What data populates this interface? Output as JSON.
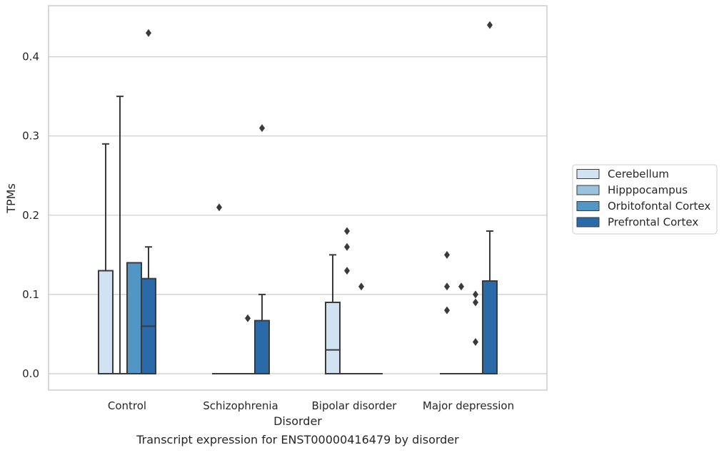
{
  "chart_data": {
    "type": "box",
    "title": "",
    "caption": "Transcript expression for ENST00000416479 by disorder",
    "xlabel": "Disorder",
    "ylabel": "TPMs",
    "ylim": [
      -0.021,
      0.465
    ],
    "yticks": [
      "0.0",
      "0.1",
      "0.2",
      "0.3",
      "0.4"
    ],
    "grid": "horizontal",
    "legend_placement": "right-outside",
    "categories": [
      "Control",
      "Schizophrenia",
      "Bipolar disorder",
      "Major depression"
    ],
    "series": [
      {
        "name": "Cerebellum",
        "color": "#d1e2f2",
        "boxes": [
          {
            "q1": 0,
            "median": 0,
            "q3": 0.13,
            "whisker_low": 0,
            "whisker_high": 0.29,
            "outliers": []
          },
          {
            "q1": 0,
            "median": 0,
            "q3": 0,
            "whisker_low": 0,
            "whisker_high": 0,
            "outliers": [
              0.21
            ]
          },
          {
            "q1": 0,
            "median": 0.03,
            "q3": 0.09,
            "whisker_low": 0,
            "whisker_high": 0.15,
            "outliers": []
          },
          {
            "q1": 0,
            "median": 0,
            "q3": 0,
            "whisker_low": 0,
            "whisker_high": 0,
            "outliers": [
              0.15,
              0.11,
              0.08
            ]
          }
        ]
      },
      {
        "name": "Hipppocampus",
        "color": "#9ac2de",
        "boxes": [
          {
            "q1": 0,
            "median": 0,
            "q3": 0,
            "whisker_low": 0,
            "whisker_high": 0.35,
            "outliers": []
          },
          {
            "q1": 0,
            "median": 0,
            "q3": 0,
            "whisker_low": 0,
            "whisker_high": 0,
            "outliers": []
          },
          {
            "q1": 0,
            "median": 0,
            "q3": 0,
            "whisker_low": 0,
            "whisker_high": 0,
            "outliers": [
              0.18,
              0.16,
              0.13
            ]
          },
          {
            "q1": 0,
            "median": 0,
            "q3": 0,
            "whisker_low": 0,
            "whisker_high": 0,
            "outliers": [
              0.11
            ]
          }
        ]
      },
      {
        "name": "Orbitofontal Cortex",
        "color": "#5196c5",
        "boxes": [
          {
            "q1": 0,
            "median": 0,
            "q3": 0.14,
            "whisker_low": 0,
            "whisker_high": 0.14,
            "outliers": []
          },
          {
            "q1": 0,
            "median": 0,
            "q3": 0,
            "whisker_low": 0,
            "whisker_high": 0,
            "outliers": [
              0.07
            ]
          },
          {
            "q1": 0,
            "median": 0,
            "q3": 0,
            "whisker_low": 0,
            "whisker_high": 0,
            "outliers": [
              0.11
            ]
          },
          {
            "q1": 0,
            "median": 0,
            "q3": 0,
            "whisker_low": 0,
            "whisker_high": 0,
            "outliers": [
              0.1,
              0.09,
              0.04
            ]
          }
        ]
      },
      {
        "name": "Prefrontal Cortex",
        "color": "#2a6aa9",
        "boxes": [
          {
            "q1": 0,
            "median": 0.06,
            "q3": 0.12,
            "whisker_low": 0,
            "whisker_high": 0.16,
            "outliers": [
              0.43
            ]
          },
          {
            "q1": 0,
            "median": 0,
            "q3": 0.067,
            "whisker_low": 0,
            "whisker_high": 0.1,
            "outliers": [
              0.31
            ]
          },
          {
            "q1": 0,
            "median": 0,
            "q3": 0,
            "whisker_low": 0,
            "whisker_high": 0,
            "outliers": []
          },
          {
            "q1": 0,
            "median": 0,
            "q3": 0.117,
            "whisker_low": 0,
            "whisker_high": 0.18,
            "outliers": [
              0.44
            ]
          }
        ]
      }
    ]
  }
}
